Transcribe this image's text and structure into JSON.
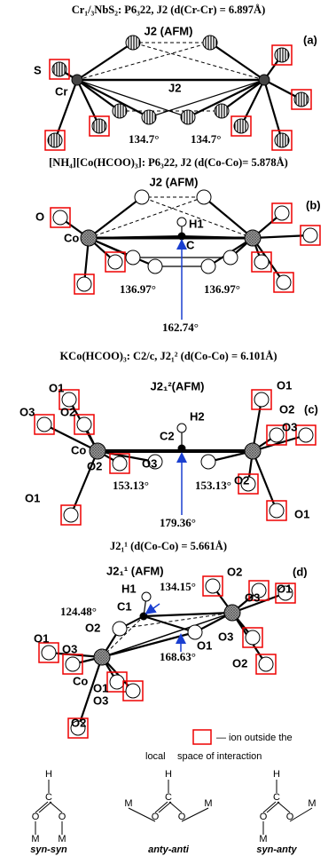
{
  "panels": [
    {
      "header": "Cr₁/₃NbS₂: P6₃22, J2 (d(Cr-Cr) = 6.897Å)",
      "tag": "(a)",
      "labels": [
        "J2 (AFM)",
        "S",
        "Cr",
        "J2",
        "134.7°",
        "134.7°"
      ]
    },
    {
      "header": "[NH₄][Co(HCOO)₃]: P6₃22, J2 (d(Co-Co)= 5.878Å)",
      "tag": "(b)",
      "labels": [
        "J2 (AFM)",
        "O",
        "Co",
        "H1",
        "C",
        "136.97°",
        "136.97°",
        "162.74°"
      ]
    },
    {
      "header": "KCo(HCOO)₃: C2/c, J2₁² (d(Co-Co) = 6.101Å)",
      "tag": "(c)",
      "labels": [
        "J2₁²(AFM)",
        "O1",
        "O3",
        "O2",
        "Co",
        "O2",
        "O1",
        "C2",
        "H2",
        "O3",
        "O1",
        "O2",
        "O3",
        "O2",
        "O1",
        "153.13°",
        "153.13°",
        "179.36°"
      ]
    },
    {
      "header": "J2₁¹ (d(Co-Co) = 5.661Å)",
      "tag": "(d)",
      "labels": [
        "J2₁¹ (AFM)",
        "H1",
        "C1",
        "134.15°",
        "124.48°",
        "O2",
        "O1",
        "O2",
        "O3",
        "O1",
        "O3",
        "O2",
        "O1",
        "O3",
        "Co",
        "O1",
        "O3",
        "O2",
        "168.63°"
      ]
    }
  ],
  "legend": {
    "text": "— ion outside the",
    "local": "local",
    "space": "space of  interaction"
  },
  "modes": [
    {
      "name": "syn-syn",
      "atoms": [
        "H",
        "C",
        "O",
        "O",
        "M",
        "M"
      ]
    },
    {
      "name": "anty-anti",
      "atoms": [
        "H",
        "C",
        "O",
        "O",
        "M",
        "M"
      ]
    },
    {
      "name": "syn-anty",
      "atoms": [
        "H",
        "C",
        "O",
        "O",
        "M",
        "M"
      ]
    }
  ]
}
